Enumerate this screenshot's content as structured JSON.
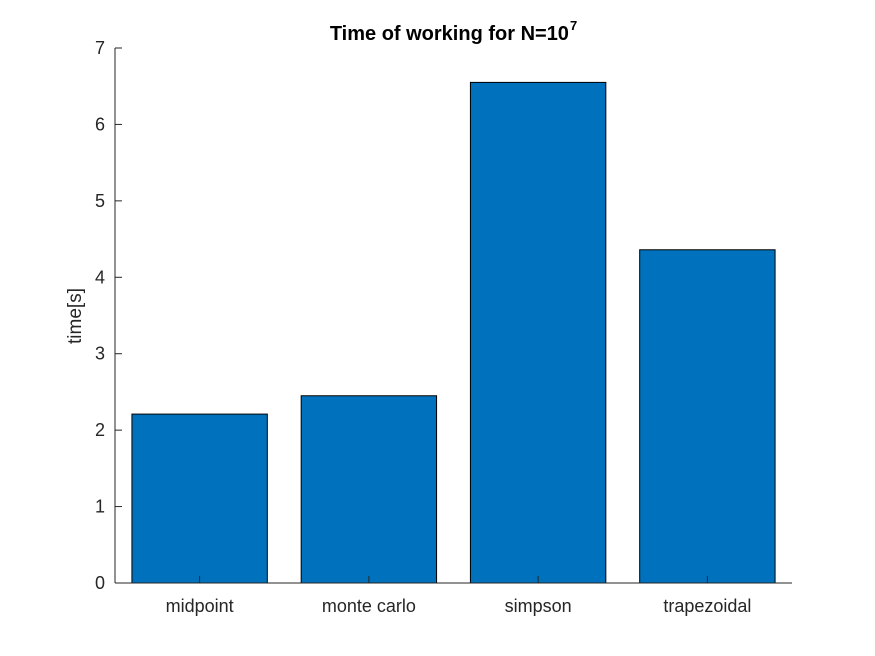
{
  "chart_data": {
    "type": "bar",
    "title": "Time of working for N=10",
    "title_superscript": "7",
    "xlabel": "",
    "ylabel": "time[s]",
    "categories": [
      "midpoint",
      "monte carlo",
      "simpson",
      "trapezoidal"
    ],
    "values": [
      2.21,
      2.45,
      6.55,
      4.36
    ],
    "ylim": [
      0,
      7
    ],
    "yticks": [
      0,
      1,
      2,
      3,
      4,
      5,
      6,
      7
    ],
    "grid": false,
    "bar_color": "#0072BD"
  }
}
